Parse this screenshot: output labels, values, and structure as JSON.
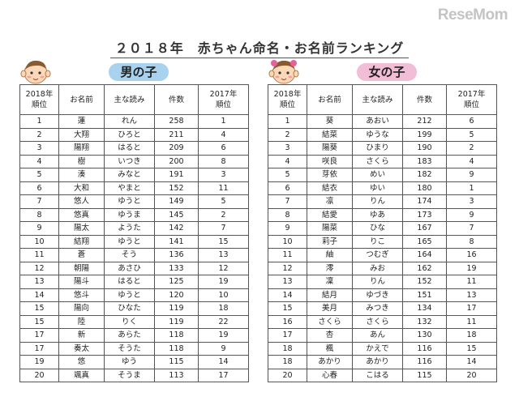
{
  "logo": "ReseMom",
  "title": "２０１８年　赤ちゃん命名・お名前ランキング",
  "headers": {
    "rank_2018_line1": "2018年",
    "rank_2018_line2": "順位",
    "name": "お名前",
    "reading": "主な読み",
    "count": "件数",
    "rank_2017_line1": "2017年",
    "rank_2017_line2": "順位"
  },
  "boys": {
    "label": "男の子",
    "rows": [
      {
        "rank": "1",
        "name": "蓮",
        "reading": "れん",
        "count": "258",
        "prev": "1"
      },
      {
        "rank": "2",
        "name": "大翔",
        "reading": "ひろと",
        "count": "211",
        "prev": "4"
      },
      {
        "rank": "3",
        "name": "陽翔",
        "reading": "はると",
        "count": "209",
        "prev": "6"
      },
      {
        "rank": "4",
        "name": "樹",
        "reading": "いつき",
        "count": "200",
        "prev": "8"
      },
      {
        "rank": "5",
        "name": "湊",
        "reading": "みなと",
        "count": "191",
        "prev": "3"
      },
      {
        "rank": "6",
        "name": "大和",
        "reading": "やまと",
        "count": "152",
        "prev": "11"
      },
      {
        "rank": "7",
        "name": "悠人",
        "reading": "ゆうと",
        "count": "149",
        "prev": "5"
      },
      {
        "rank": "8",
        "name": "悠真",
        "reading": "ゆうま",
        "count": "145",
        "prev": "2"
      },
      {
        "rank": "9",
        "name": "陽太",
        "reading": "ようた",
        "count": "142",
        "prev": "7"
      },
      {
        "rank": "10",
        "name": "結翔",
        "reading": "ゆうと",
        "count": "141",
        "prev": "15"
      },
      {
        "rank": "11",
        "name": "蒼",
        "reading": "そう",
        "count": "136",
        "prev": "13"
      },
      {
        "rank": "12",
        "name": "朝陽",
        "reading": "あさひ",
        "count": "133",
        "prev": "12"
      },
      {
        "rank": "13",
        "name": "陽斗",
        "reading": "はると",
        "count": "125",
        "prev": "19"
      },
      {
        "rank": "14",
        "name": "悠斗",
        "reading": "ゆうと",
        "count": "120",
        "prev": "10"
      },
      {
        "rank": "15",
        "name": "陽向",
        "reading": "ひなた",
        "count": "119",
        "prev": "18"
      },
      {
        "rank": "15",
        "name": "陸",
        "reading": "りく",
        "count": "119",
        "prev": "22"
      },
      {
        "rank": "17",
        "name": "新",
        "reading": "あらた",
        "count": "118",
        "prev": "19"
      },
      {
        "rank": "17",
        "name": "奏太",
        "reading": "そうた",
        "count": "118",
        "prev": "9"
      },
      {
        "rank": "19",
        "name": "悠",
        "reading": "ゆう",
        "count": "115",
        "prev": "14"
      },
      {
        "rank": "20",
        "name": "颯真",
        "reading": "そうま",
        "count": "113",
        "prev": "17"
      }
    ]
  },
  "girls": {
    "label": "女の子",
    "rows": [
      {
        "rank": "1",
        "name": "葵",
        "reading": "あおい",
        "count": "212",
        "prev": "6"
      },
      {
        "rank": "2",
        "name": "結菜",
        "reading": "ゆうな",
        "count": "199",
        "prev": "5"
      },
      {
        "rank": "3",
        "name": "陽葵",
        "reading": "ひまり",
        "count": "190",
        "prev": "2"
      },
      {
        "rank": "4",
        "name": "咲良",
        "reading": "さくら",
        "count": "183",
        "prev": "4"
      },
      {
        "rank": "5",
        "name": "芽依",
        "reading": "めい",
        "count": "182",
        "prev": "9"
      },
      {
        "rank": "6",
        "name": "結衣",
        "reading": "ゆい",
        "count": "180",
        "prev": "1"
      },
      {
        "rank": "7",
        "name": "凛",
        "reading": "りん",
        "count": "174",
        "prev": "3"
      },
      {
        "rank": "8",
        "name": "結愛",
        "reading": "ゆあ",
        "count": "173",
        "prev": "9"
      },
      {
        "rank": "9",
        "name": "陽菜",
        "reading": "ひな",
        "count": "167",
        "prev": "7"
      },
      {
        "rank": "10",
        "name": "莉子",
        "reading": "りこ",
        "count": "165",
        "prev": "8"
      },
      {
        "rank": "11",
        "name": "紬",
        "reading": "つむぎ",
        "count": "164",
        "prev": "16"
      },
      {
        "rank": "12",
        "name": "澪",
        "reading": "みお",
        "count": "162",
        "prev": "19"
      },
      {
        "rank": "13",
        "name": "凜",
        "reading": "りん",
        "count": "152",
        "prev": "11"
      },
      {
        "rank": "14",
        "name": "結月",
        "reading": "ゆづき",
        "count": "151",
        "prev": "13"
      },
      {
        "rank": "15",
        "name": "美月",
        "reading": "みつき",
        "count": "134",
        "prev": "17"
      },
      {
        "rank": "16",
        "name": "さくら",
        "reading": "さくら",
        "count": "132",
        "prev": "11"
      },
      {
        "rank": "17",
        "name": "杏",
        "reading": "あん",
        "count": "130",
        "prev": "18"
      },
      {
        "rank": "18",
        "name": "楓",
        "reading": "かえで",
        "count": "116",
        "prev": "15"
      },
      {
        "rank": "18",
        "name": "あかり",
        "reading": "あかり",
        "count": "116",
        "prev": "14"
      },
      {
        "rank": "20",
        "name": "心春",
        "reading": "こはる",
        "count": "115",
        "prev": "20"
      }
    ]
  }
}
